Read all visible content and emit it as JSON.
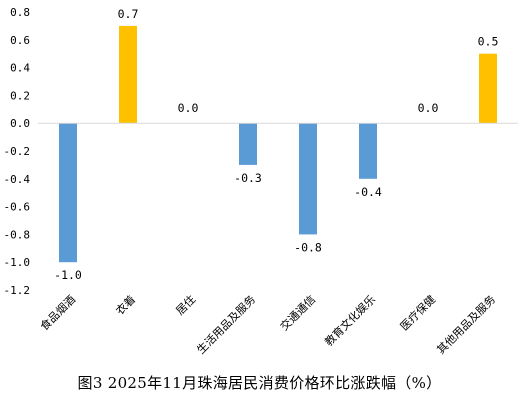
{
  "chart_data": {
    "type": "bar",
    "title": "图3 2025年11月珠海居民消费价格环比涨跌幅（%）",
    "xlabel": "",
    "ylabel": "",
    "ylim": [
      -1.2,
      0.8
    ],
    "yticks": [
      0.8,
      0.6,
      0.4,
      0.2,
      0.0,
      -0.2,
      -0.4,
      -0.6,
      -0.8,
      -1.0,
      -1.2
    ],
    "ytick_labels": [
      "0.8",
      "0.6",
      "0.4",
      "0.2",
      "0.0",
      "-0.2",
      "-0.4",
      "-0.6",
      "-0.8",
      "-1.0",
      "-1.2"
    ],
    "categories": [
      "食品烟酒",
      "衣着",
      "居住",
      "生活用品及服务",
      "交通通信",
      "教育文化娱乐",
      "医疗保健",
      "其他用品及服务"
    ],
    "values": [
      -1.0,
      0.7,
      0.0,
      -0.3,
      -0.8,
      -0.4,
      0.0,
      0.5
    ],
    "value_labels": [
      "-1.0",
      "0.7",
      "0.0",
      "-0.3",
      "-0.8",
      "-0.4",
      "0.0",
      "0.5"
    ],
    "grid": false,
    "legend": "none",
    "colors": {
      "positive": "#FFC000",
      "negative": "#5B9BD5",
      "axis": "#D9D9D9"
    }
  }
}
